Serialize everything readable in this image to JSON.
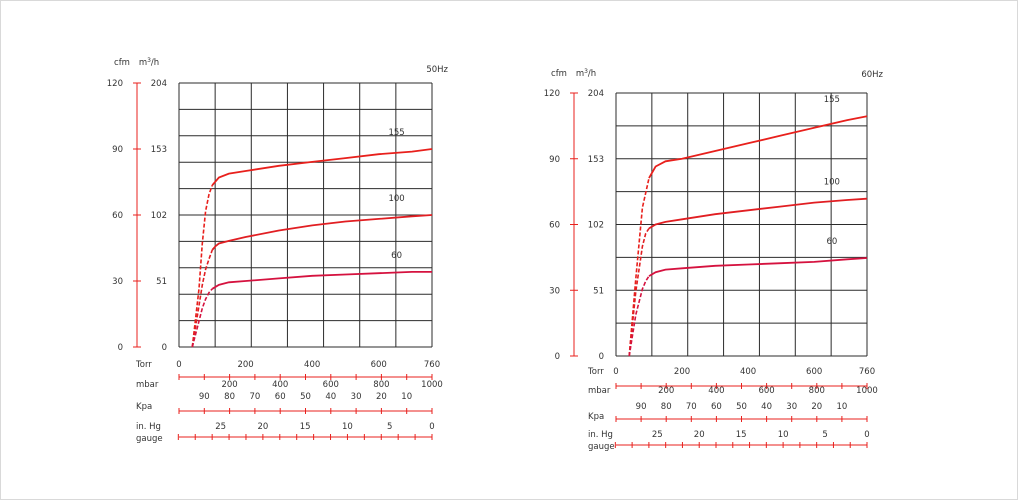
{
  "chart_data": [
    {
      "type": "line",
      "title": "50Hz",
      "units": {
        "cfm": "cfm",
        "m3h_base": "m",
        "m3h_sup": "3",
        "m3h_rest": "/h"
      },
      "cfm_ticks": [
        "0",
        "30",
        "60",
        "90",
        "120"
      ],
      "m3h_ticks": [
        "0",
        "51",
        "102",
        "153",
        "204"
      ],
      "ylim": [
        0,
        204
      ],
      "xlim": [
        0,
        760
      ],
      "scales": [
        {
          "label": "Torr",
          "ticks": [
            "0",
            "200",
            "400",
            "600",
            "760"
          ]
        },
        {
          "label": "mbar",
          "ticks": [
            "200",
            "400",
            "600",
            "800",
            "1000"
          ]
        },
        {
          "label": "Kpa",
          "ticks": [
            "90",
            "80",
            "70",
            "60",
            "50",
            "40",
            "30",
            "20",
            "10"
          ]
        },
        {
          "label": "in. Hg",
          "label2": "gauge",
          "ticks": [
            "25",
            "20",
            "15",
            "10",
            "5",
            "0"
          ]
        }
      ],
      "series": [
        {
          "name": "155",
          "color": "#e8201c",
          "x": [
            40,
            60,
            70,
            80,
            90,
            100,
            120,
            150,
            200,
            300,
            400,
            500,
            600,
            700,
            760
          ],
          "y": [
            0,
            45,
            80,
            105,
            118,
            125,
            131,
            134,
            136,
            140,
            143,
            146,
            149,
            151,
            153
          ]
        },
        {
          "name": "100",
          "color": "#e11e22",
          "x": [
            40,
            60,
            70,
            80,
            90,
            100,
            110,
            120,
            150,
            200,
            300,
            400,
            500,
            600,
            700,
            760
          ],
          "y": [
            0,
            32,
            48,
            60,
            68,
            75,
            78,
            80,
            82,
            85,
            90,
            94,
            97,
            99,
            101,
            102
          ]
        },
        {
          "name": "60",
          "color": "#d5123f",
          "x": [
            40,
            60,
            70,
            80,
            90,
            100,
            120,
            150,
            200,
            300,
            400,
            500,
            600,
            700,
            760
          ],
          "y": [
            0,
            20,
            30,
            37,
            42,
            45,
            48,
            50,
            51,
            53,
            55,
            56,
            57,
            58,
            58
          ]
        }
      ]
    },
    {
      "type": "line",
      "title": "60Hz",
      "units": {
        "cfm": "cfm",
        "m3h_base": "m",
        "m3h_sup": "3",
        "m3h_rest": "/h"
      },
      "cfm_ticks": [
        "0",
        "30",
        "60",
        "90",
        "120"
      ],
      "m3h_ticks": [
        "0",
        "51",
        "102",
        "153",
        "204"
      ],
      "ylim": [
        0,
        204
      ],
      "xlim": [
        0,
        760
      ],
      "scales": [
        {
          "label": "Torr",
          "ticks": [
            "0",
            "200",
            "400",
            "600",
            "760"
          ]
        },
        {
          "label": "mbar",
          "ticks": [
            "200",
            "400",
            "600",
            "800",
            "1000"
          ]
        },
        {
          "label": "Kpa",
          "ticks": [
            "90",
            "80",
            "70",
            "60",
            "50",
            "40",
            "30",
            "20",
            "10"
          ]
        },
        {
          "label": "in. Hg",
          "label2": "gauge",
          "ticks": [
            "25",
            "20",
            "15",
            "10",
            "5",
            "0"
          ]
        }
      ],
      "series": [
        {
          "name": "155",
          "color": "#e8201c",
          "x": [
            40,
            60,
            80,
            100,
            120,
            150,
            200,
            300,
            400,
            500,
            600,
            700,
            760
          ],
          "y": [
            0,
            60,
            115,
            138,
            147,
            151,
            153,
            159,
            165,
            171,
            177,
            183,
            186
          ]
        },
        {
          "name": "100",
          "color": "#e11e22",
          "x": [
            40,
            60,
            80,
            90,
            100,
            120,
            150,
            200,
            300,
            400,
            500,
            600,
            700,
            760
          ],
          "y": [
            0,
            50,
            85,
            95,
            99,
            102,
            104,
            106,
            110,
            113,
            116,
            119,
            121,
            122
          ]
        },
        {
          "name": "60",
          "color": "#d5123f",
          "x": [
            40,
            60,
            80,
            90,
            100,
            120,
            150,
            200,
            300,
            400,
            500,
            600,
            700,
            760
          ],
          "y": [
            0,
            32,
            52,
            58,
            62,
            65,
            67,
            68,
            70,
            71,
            72,
            73,
            75,
            76
          ]
        }
      ]
    }
  ]
}
